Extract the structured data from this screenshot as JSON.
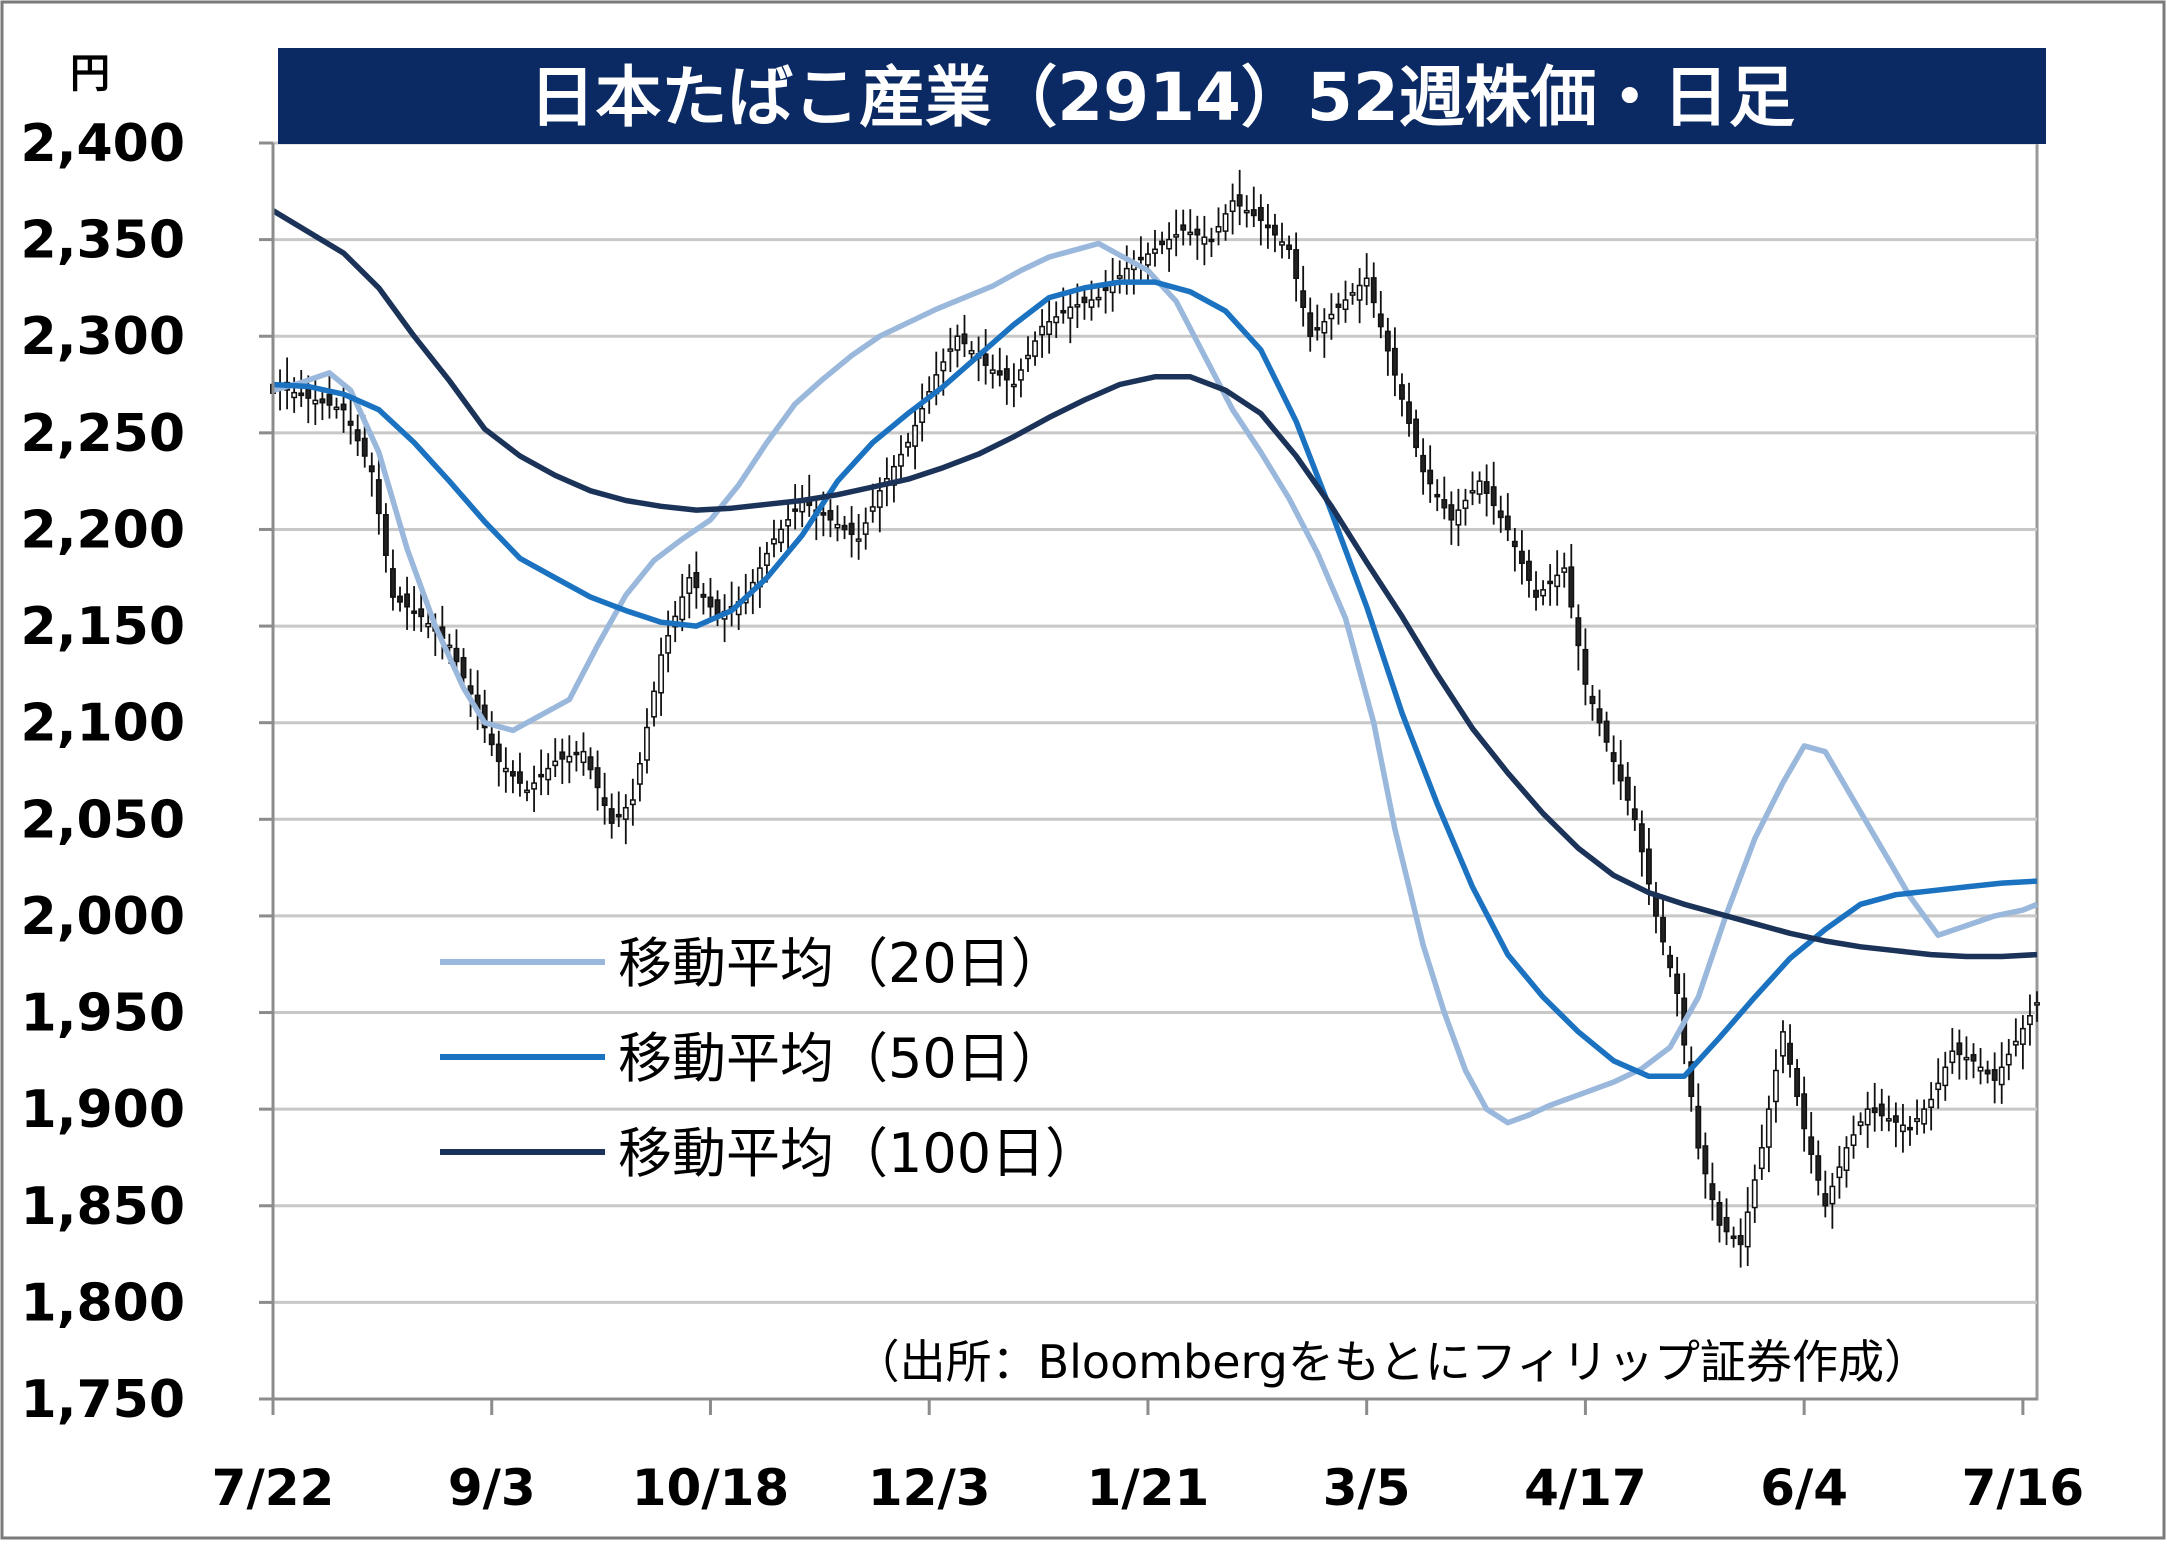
{
  "chart_data": {
    "type": "candlestick",
    "title": "日本たばこ産業（2914）52週株価・日足",
    "ylabel": "円",
    "source": "（出所：Bloombergをもとにフィリップ証券作成）",
    "ylim": [
      1750,
      2400
    ],
    "yticks": [
      2400,
      2350,
      2300,
      2250,
      2200,
      2150,
      2100,
      2050,
      2000,
      1950,
      1900,
      1850,
      1800,
      1750
    ],
    "ytick_labels": [
      "2,400",
      "2,350",
      "2,300",
      "2,250",
      "2,200",
      "2,150",
      "2,100",
      "2,050",
      "2,000",
      "1,950",
      "1,900",
      "1,850",
      "1,800",
      "1,750"
    ],
    "x_range": [
      0,
      250
    ],
    "xticks": [
      0,
      31,
      62,
      93,
      124,
      155,
      186,
      217,
      248
    ],
    "xtick_labels": [
      "7/22",
      "9/3",
      "10/18",
      "12/3",
      "1/21",
      "3/5",
      "4/17",
      "6/4",
      "7/16"
    ],
    "grid": true,
    "legend_position": "left-middle",
    "colors": {
      "ma20": "#9ab7dc",
      "ma50": "#1a72c0",
      "ma100": "#1b3358",
      "candle_up": "#ffffff",
      "candle_down": "#222222",
      "title_bg": "#0b2a63"
    },
    "price_path": [
      [
        0,
        2275
      ],
      [
        5,
        2268
      ],
      [
        10,
        2262
      ],
      [
        14,
        2230
      ],
      [
        17,
        2165
      ],
      [
        21,
        2155
      ],
      [
        25,
        2140
      ],
      [
        28,
        2115
      ],
      [
        32,
        2080
      ],
      [
        36,
        2065
      ],
      [
        40,
        2080
      ],
      [
        44,
        2085
      ],
      [
        48,
        2048
      ],
      [
        51,
        2060
      ],
      [
        55,
        2135
      ],
      [
        59,
        2175
      ],
      [
        63,
        2155
      ],
      [
        67,
        2165
      ],
      [
        71,
        2195
      ],
      [
        75,
        2215
      ],
      [
        79,
        2205
      ],
      [
        83,
        2195
      ],
      [
        86,
        2220
      ],
      [
        90,
        2245
      ],
      [
        94,
        2280
      ],
      [
        97,
        2300
      ],
      [
        101,
        2285
      ],
      [
        105,
        2275
      ],
      [
        109,
        2305
      ],
      [
        113,
        2315
      ],
      [
        117,
        2320
      ],
      [
        121,
        2335
      ],
      [
        125,
        2345
      ],
      [
        129,
        2355
      ],
      [
        133,
        2350
      ],
      [
        136,
        2370
      ],
      [
        140,
        2360
      ],
      [
        144,
        2345
      ],
      [
        147,
        2300
      ],
      [
        151,
        2315
      ],
      [
        155,
        2330
      ],
      [
        159,
        2280
      ],
      [
        163,
        2230
      ],
      [
        167,
        2205
      ],
      [
        171,
        2225
      ],
      [
        175,
        2200
      ],
      [
        179,
        2165
      ],
      [
        183,
        2180
      ],
      [
        186,
        2120
      ],
      [
        190,
        2080
      ],
      [
        193,
        2050
      ],
      [
        196,
        2000
      ],
      [
        199,
        1960
      ],
      [
        202,
        1880
      ],
      [
        205,
        1840
      ],
      [
        208,
        1830
      ],
      [
        211,
        1880
      ],
      [
        214,
        1940
      ],
      [
        217,
        1890
      ],
      [
        220,
        1850
      ],
      [
        223,
        1880
      ],
      [
        226,
        1900
      ],
      [
        229,
        1895
      ],
      [
        232,
        1890
      ],
      [
        235,
        1905
      ],
      [
        238,
        1930
      ],
      [
        241,
        1925
      ],
      [
        244,
        1915
      ],
      [
        247,
        1935
      ],
      [
        250,
        1955
      ]
    ],
    "series": [
      {
        "name": "移動平均（20日）",
        "color": "#9ab7dc",
        "points": [
          [
            0,
            2272
          ],
          [
            4,
            2276
          ],
          [
            8,
            2281
          ],
          [
            11,
            2272
          ],
          [
            15,
            2240
          ],
          [
            19,
            2190
          ],
          [
            23,
            2150
          ],
          [
            27,
            2118
          ],
          [
            30,
            2100
          ],
          [
            34,
            2096
          ],
          [
            38,
            2104
          ],
          [
            42,
            2112
          ],
          [
            46,
            2140
          ],
          [
            50,
            2166
          ],
          [
            54,
            2184
          ],
          [
            58,
            2195
          ],
          [
            62,
            2205
          ],
          [
            66,
            2223
          ],
          [
            70,
            2245
          ],
          [
            74,
            2265
          ],
          [
            78,
            2278
          ],
          [
            82,
            2290
          ],
          [
            86,
            2300
          ],
          [
            90,
            2307
          ],
          [
            94,
            2314
          ],
          [
            98,
            2320
          ],
          [
            102,
            2326
          ],
          [
            106,
            2334
          ],
          [
            110,
            2341
          ],
          [
            114,
            2345
          ],
          [
            117,
            2348
          ],
          [
            120,
            2342
          ],
          [
            124,
            2334
          ],
          [
            128,
            2318
          ],
          [
            132,
            2290
          ],
          [
            136,
            2262
          ],
          [
            140,
            2240
          ],
          [
            144,
            2216
          ],
          [
            148,
            2188
          ],
          [
            152,
            2154
          ],
          [
            156,
            2100
          ],
          [
            159,
            2045
          ],
          [
            163,
            1985
          ],
          [
            166,
            1950
          ],
          [
            169,
            1920
          ],
          [
            172,
            1900
          ],
          [
            175,
            1893
          ],
          [
            178,
            1897
          ],
          [
            181,
            1902
          ],
          [
            184,
            1906
          ],
          [
            187,
            1910
          ],
          [
            190,
            1914
          ],
          [
            194,
            1921
          ],
          [
            198,
            1932
          ],
          [
            202,
            1958
          ],
          [
            206,
            2001
          ],
          [
            210,
            2040
          ],
          [
            214,
            2069
          ],
          [
            217,
            2088
          ],
          [
            220,
            2085
          ],
          [
            224,
            2060
          ],
          [
            228,
            2035
          ],
          [
            232,
            2010
          ],
          [
            236,
            1990
          ],
          [
            240,
            1995
          ],
          [
            244,
            2000
          ],
          [
            248,
            2003
          ],
          [
            250,
            2006
          ]
        ]
      },
      {
        "name": "移動平均（50日）",
        "color": "#1a72c0",
        "points": [
          [
            0,
            2275
          ],
          [
            5,
            2274
          ],
          [
            10,
            2270
          ],
          [
            15,
            2262
          ],
          [
            20,
            2245
          ],
          [
            25,
            2225
          ],
          [
            30,
            2204
          ],
          [
            35,
            2185
          ],
          [
            40,
            2175
          ],
          [
            45,
            2165
          ],
          [
            50,
            2158
          ],
          [
            55,
            2152
          ],
          [
            60,
            2150
          ],
          [
            65,
            2158
          ],
          [
            70,
            2175
          ],
          [
            75,
            2197
          ],
          [
            80,
            2225
          ],
          [
            85,
            2245
          ],
          [
            90,
            2260
          ],
          [
            95,
            2274
          ],
          [
            100,
            2290
          ],
          [
            105,
            2306
          ],
          [
            110,
            2320
          ],
          [
            115,
            2325
          ],
          [
            120,
            2328
          ],
          [
            125,
            2328
          ],
          [
            130,
            2323
          ],
          [
            135,
            2313
          ],
          [
            140,
            2293
          ],
          [
            145,
            2256
          ],
          [
            150,
            2209
          ],
          [
            155,
            2160
          ],
          [
            160,
            2105
          ],
          [
            165,
            2058
          ],
          [
            170,
            2015
          ],
          [
            175,
            1980
          ],
          [
            180,
            1958
          ],
          [
            185,
            1940
          ],
          [
            190,
            1925
          ],
          [
            195,
            1917
          ],
          [
            200,
            1917
          ],
          [
            205,
            1937
          ],
          [
            210,
            1958
          ],
          [
            215,
            1978
          ],
          [
            220,
            1993
          ],
          [
            225,
            2006
          ],
          [
            230,
            2011
          ],
          [
            235,
            2013
          ],
          [
            240,
            2015
          ],
          [
            245,
            2017
          ],
          [
            250,
            2018
          ]
        ]
      },
      {
        "name": "移動平均（100日）",
        "color": "#1b3358",
        "points": [
          [
            0,
            2365
          ],
          [
            5,
            2354
          ],
          [
            10,
            2343
          ],
          [
            15,
            2325
          ],
          [
            20,
            2300
          ],
          [
            25,
            2277
          ],
          [
            30,
            2252
          ],
          [
            35,
            2238
          ],
          [
            40,
            2228
          ],
          [
            45,
            2220
          ],
          [
            50,
            2215
          ],
          [
            55,
            2212
          ],
          [
            60,
            2210
          ],
          [
            65,
            2211
          ],
          [
            70,
            2213
          ],
          [
            75,
            2215
          ],
          [
            80,
            2218
          ],
          [
            85,
            2222
          ],
          [
            90,
            2226
          ],
          [
            95,
            2232
          ],
          [
            100,
            2239
          ],
          [
            105,
            2248
          ],
          [
            110,
            2258
          ],
          [
            115,
            2267
          ],
          [
            120,
            2275
          ],
          [
            125,
            2279
          ],
          [
            130,
            2279
          ],
          [
            135,
            2272
          ],
          [
            140,
            2260
          ],
          [
            145,
            2238
          ],
          [
            150,
            2212
          ],
          [
            155,
            2183
          ],
          [
            160,
            2155
          ],
          [
            165,
            2125
          ],
          [
            170,
            2097
          ],
          [
            175,
            2074
          ],
          [
            180,
            2053
          ],
          [
            185,
            2035
          ],
          [
            190,
            2021
          ],
          [
            195,
            2012
          ],
          [
            200,
            2006
          ],
          [
            205,
            2001
          ],
          [
            210,
            1996
          ],
          [
            215,
            1991
          ],
          [
            220,
            1987
          ],
          [
            225,
            1984
          ],
          [
            230,
            1982
          ],
          [
            235,
            1980
          ],
          [
            240,
            1979
          ],
          [
            245,
            1979
          ],
          [
            250,
            1980
          ]
        ]
      }
    ]
  }
}
